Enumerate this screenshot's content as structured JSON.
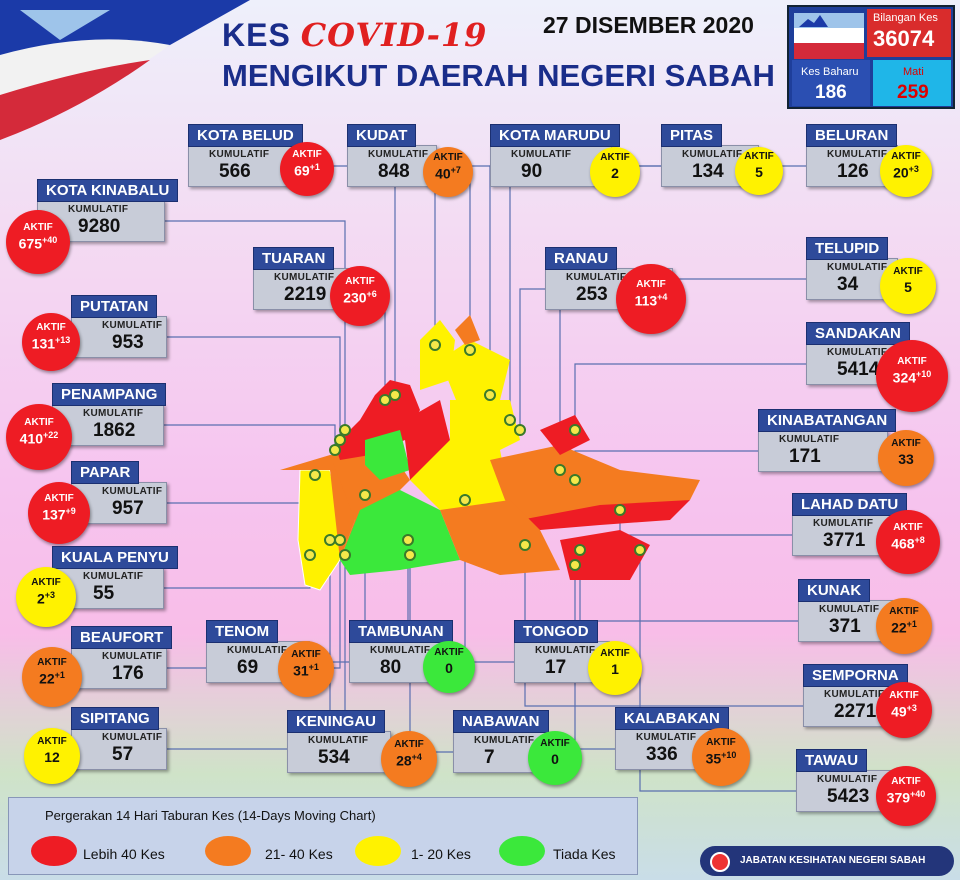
{
  "header": {
    "title_prefix": "KES",
    "title_covid": "COVID-19",
    "subtitle": "MENGIKUT DAERAH NEGERI SABAH",
    "date": "27 DISEMBER 2020"
  },
  "summary": {
    "total_label": "Bilangan Kes",
    "total_value": "36074",
    "new_label": "Kes Baharu",
    "new_value": "186",
    "death_label": "Mati",
    "death_value": "259"
  },
  "labels": {
    "kumulatif": "KUMULATIF",
    "aktif": "AKTIF"
  },
  "districts": [
    {
      "name": "KOTA BELUD",
      "kumulatif": "566",
      "aktif": "69",
      "delta": "+1",
      "level": "red"
    },
    {
      "name": "KUDAT",
      "kumulatif": "848",
      "aktif": "40",
      "delta": "+7",
      "level": "orange"
    },
    {
      "name": "KOTA MARUDU",
      "kumulatif": "90",
      "aktif": "2",
      "delta": "",
      "level": "yellow"
    },
    {
      "name": "PITAS",
      "kumulatif": "134",
      "aktif": "5",
      "delta": "",
      "level": "yellow"
    },
    {
      "name": "BELURAN",
      "kumulatif": "126",
      "aktif": "20",
      "delta": "+3",
      "level": "yellow"
    },
    {
      "name": "KOTA KINABALU",
      "kumulatif": "9280",
      "aktif": "675",
      "delta": "+40",
      "level": "red"
    },
    {
      "name": "TUARAN",
      "kumulatif": "2219",
      "aktif": "230",
      "delta": "+6",
      "level": "red"
    },
    {
      "name": "RANAU",
      "kumulatif": "253",
      "aktif": "113",
      "delta": "+4",
      "level": "red"
    },
    {
      "name": "TELUPID",
      "kumulatif": "34",
      "aktif": "5",
      "delta": "",
      "level": "yellow"
    },
    {
      "name": "PUTATAN",
      "kumulatif": "953",
      "aktif": "131",
      "delta": "+13",
      "level": "red"
    },
    {
      "name": "SANDAKAN",
      "kumulatif": "5414",
      "aktif": "324",
      "delta": "+10",
      "level": "red"
    },
    {
      "name": "PENAMPANG",
      "kumulatif": "1862",
      "aktif": "410",
      "delta": "+22",
      "level": "red"
    },
    {
      "name": "KINABATANGAN",
      "kumulatif": "171",
      "aktif": "33",
      "delta": "",
      "level": "orange"
    },
    {
      "name": "PAPAR",
      "kumulatif": "957",
      "aktif": "137",
      "delta": "+9",
      "level": "red"
    },
    {
      "name": "LAHAD DATU",
      "kumulatif": "3771",
      "aktif": "468",
      "delta": "+8",
      "level": "red"
    },
    {
      "name": "KUALA PENYU",
      "kumulatif": "55",
      "aktif": "2",
      "delta": "+3",
      "level": "yellow"
    },
    {
      "name": "KUNAK",
      "kumulatif": "371",
      "aktif": "22",
      "delta": "+1",
      "level": "orange"
    },
    {
      "name": "TENOM",
      "kumulatif": "69",
      "aktif": "31",
      "delta": "+1",
      "level": "orange"
    },
    {
      "name": "TAMBUNAN",
      "kumulatif": "80",
      "aktif": "0",
      "delta": "",
      "level": "green"
    },
    {
      "name": "TONGOD",
      "kumulatif": "17",
      "aktif": "1",
      "delta": "",
      "level": "yellow"
    },
    {
      "name": "BEAUFORT",
      "kumulatif": "176",
      "aktif": "22",
      "delta": "+1",
      "level": "orange"
    },
    {
      "name": "SEMPORNA",
      "kumulatif": "2271",
      "aktif": "49",
      "delta": "+3",
      "level": "red"
    },
    {
      "name": "SIPITANG",
      "kumulatif": "57",
      "aktif": "12",
      "delta": "",
      "level": "yellow"
    },
    {
      "name": "KENINGAU",
      "kumulatif": "534",
      "aktif": "28",
      "delta": "+4",
      "level": "orange"
    },
    {
      "name": "NABAWAN",
      "kumulatif": "7",
      "aktif": "0",
      "delta": "",
      "level": "green"
    },
    {
      "name": "KALABAKAN",
      "kumulatif": "336",
      "aktif": "35",
      "delta": "+10",
      "level": "orange"
    },
    {
      "name": "TAWAU",
      "kumulatif": "5423",
      "aktif": "379",
      "delta": "+40",
      "level": "red"
    }
  ],
  "legend": {
    "title": "Pergerakan 14 Hari Taburan Kes (14-Days Moving Chart)",
    "items": [
      {
        "label": "Lebih 40 Kes",
        "color": "#ee1c24"
      },
      {
        "label": "21- 40 Kes",
        "color": "#f47b20"
      },
      {
        "label": "1- 20 Kes",
        "color": "#fff200"
      },
      {
        "label": "Tiada Kes",
        "color": "#3be83b"
      }
    ]
  },
  "footer": {
    "agency": "JABATAN KESIHATAN NEGERI SABAH"
  },
  "colors": {
    "red": "#ee1c24",
    "orange": "#f47b20",
    "yellow": "#fff200",
    "green": "#3be83b",
    "header_blue": "#2e4a9a"
  }
}
